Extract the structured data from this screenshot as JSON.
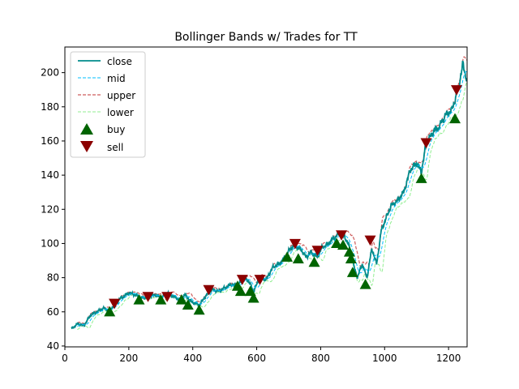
{
  "chart_data": {
    "type": "line",
    "title": "Bollinger Bands w/ Trades for TT",
    "xlabel": "",
    "ylabel": "",
    "xlim": [
      0,
      1258
    ],
    "ylim": [
      39.5,
      215
    ],
    "xticks": [
      0,
      200,
      400,
      600,
      800,
      1000,
      1200
    ],
    "yticks": [
      40,
      60,
      80,
      100,
      120,
      140,
      160,
      180,
      200
    ],
    "grid": false,
    "legend_position": "top-left",
    "colors": {
      "close": "#008b8b",
      "mid": "#00bfff",
      "upper": "#cd5c5c",
      "lower": "#90ee90",
      "buy": "#006400",
      "sell": "#8b0000"
    },
    "close_anchors": [
      [
        20,
        50
      ],
      [
        40,
        53
      ],
      [
        60,
        52
      ],
      [
        80,
        58
      ],
      [
        100,
        60
      ],
      [
        120,
        62
      ],
      [
        140,
        61
      ],
      [
        155,
        64
      ],
      [
        175,
        68
      ],
      [
        200,
        71
      ],
      [
        220,
        70
      ],
      [
        240,
        68
      ],
      [
        262,
        69
      ],
      [
        285,
        70
      ],
      [
        300,
        68
      ],
      [
        320,
        71
      ],
      [
        340,
        69
      ],
      [
        360,
        67
      ],
      [
        375,
        70
      ],
      [
        395,
        66
      ],
      [
        420,
        64
      ],
      [
        440,
        69
      ],
      [
        460,
        73
      ],
      [
        480,
        72
      ],
      [
        500,
        74
      ],
      [
        520,
        76
      ],
      [
        540,
        75
      ],
      [
        560,
        80
      ],
      [
        575,
        78
      ],
      [
        590,
        72
      ],
      [
        610,
        80
      ],
      [
        630,
        79
      ],
      [
        650,
        86
      ],
      [
        670,
        88
      ],
      [
        690,
        92
      ],
      [
        705,
        97
      ],
      [
        720,
        99
      ],
      [
        740,
        96
      ],
      [
        755,
        92
      ],
      [
        770,
        95
      ],
      [
        790,
        92
      ],
      [
        805,
        98
      ],
      [
        820,
        99
      ],
      [
        840,
        103
      ],
      [
        860,
        106
      ],
      [
        875,
        104
      ],
      [
        890,
        98
      ],
      [
        905,
        86
      ],
      [
        915,
        80
      ],
      [
        930,
        88
      ],
      [
        945,
        80
      ],
      [
        960,
        97
      ],
      [
        975,
        88
      ],
      [
        990,
        108
      ],
      [
        1005,
        115
      ],
      [
        1020,
        122
      ],
      [
        1040,
        125
      ],
      [
        1060,
        130
      ],
      [
        1080,
        143
      ],
      [
        1100,
        147
      ],
      [
        1115,
        142
      ],
      [
        1130,
        158
      ],
      [
        1150,
        165
      ],
      [
        1170,
        168
      ],
      [
        1190,
        175
      ],
      [
        1210,
        178
      ],
      [
        1230,
        190
      ],
      [
        1245,
        205
      ],
      [
        1258,
        195
      ]
    ],
    "series": [
      {
        "name": "close",
        "style": "solid"
      },
      {
        "name": "mid",
        "style": "dashed"
      },
      {
        "name": "upper",
        "style": "dashed"
      },
      {
        "name": "lower",
        "style": "dashed"
      }
    ],
    "buy": [
      [
        140,
        60
      ],
      [
        232,
        67
      ],
      [
        300,
        67
      ],
      [
        365,
        67
      ],
      [
        385,
        64
      ],
      [
        420,
        61
      ],
      [
        540,
        75
      ],
      [
        550,
        72
      ],
      [
        580,
        72
      ],
      [
        590,
        68
      ],
      [
        695,
        92
      ],
      [
        730,
        91
      ],
      [
        780,
        89
      ],
      [
        850,
        100
      ],
      [
        870,
        99
      ],
      [
        890,
        95
      ],
      [
        895,
        91
      ],
      [
        900,
        83
      ],
      [
        940,
        76
      ],
      [
        1115,
        138
      ],
      [
        1220,
        173
      ]
    ],
    "sell": [
      [
        155,
        65
      ],
      [
        260,
        69
      ],
      [
        320,
        69
      ],
      [
        450,
        73
      ],
      [
        555,
        79
      ],
      [
        610,
        79
      ],
      [
        720,
        100
      ],
      [
        790,
        96
      ],
      [
        865,
        105
      ],
      [
        955,
        102
      ],
      [
        1130,
        159
      ],
      [
        1225,
        190
      ]
    ]
  },
  "legend": {
    "close": "close",
    "mid": "mid",
    "upper": "upper",
    "lower": "lower",
    "buy": "buy",
    "sell": "sell"
  }
}
